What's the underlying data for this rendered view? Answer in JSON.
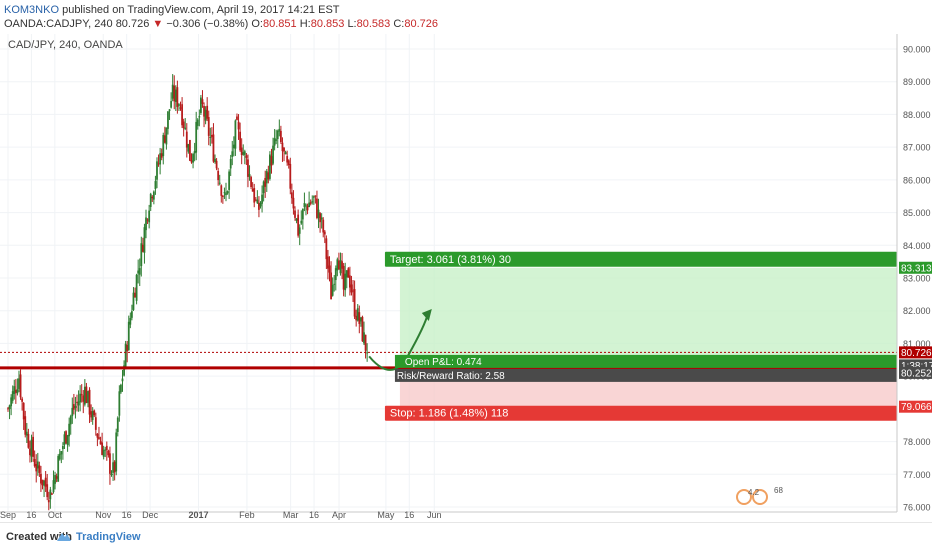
{
  "header": {
    "author": "KOM3NKO",
    "published": "published on TradingView.com, April 19, 2017 14:21 EST",
    "symbol": "OANDA:CADJPY, 240",
    "last": "80.726",
    "change": "−0.306 (−0.38%)",
    "open_label": "O:",
    "open": "80.851",
    "high_label": "H:",
    "high": "80.853",
    "low_label": "L:",
    "low": "80.583",
    "close_label": "C:",
    "close": "80.726"
  },
  "legend": {
    "title": "CAD/JPY, 240, OANDA"
  },
  "position": {
    "target_label": "Target: 3.061 (3.81%) 30",
    "target_price": "83.313",
    "open_pnl": "Open P&L: 0.474",
    "pnl_price": "1:38:17",
    "ratio": "Risk/Reward Ratio: 2.58",
    "entry_price": "80.252",
    "stop_label": "Stop: 1.186 (1.48%) 118",
    "stop_price": "79.066",
    "current_price": "80.726"
  },
  "colors": {
    "up": "#2e7d32",
    "down": "#b71c1c",
    "entry_line": "#b00000",
    "target_zone": "#c8f0c8",
    "stop_zone": "#f8caca",
    "target_label_bg": "#2b9a2b",
    "stop_label_bg": "#e53935"
  },
  "badges": {
    "indicator_a": "4.2",
    "indicator_b": "68"
  },
  "footer": {
    "created_with": "Created with",
    "brand": "TradingView"
  },
  "chart_data": {
    "type": "candlestick",
    "title": "CAD/JPY, 240, OANDA",
    "xlabel": "",
    "ylabel": "",
    "ylim": [
      76.0,
      90.0
    ],
    "x_ticks": [
      "Sep",
      "16",
      "Oct",
      "Nov",
      "16",
      "Dec",
      "2017",
      "Feb",
      "Mar",
      "16",
      "Apr",
      "May",
      "16",
      "Jun"
    ],
    "y_ticks": [
      "90.000",
      "89.000",
      "88.000",
      "87.000",
      "86.000",
      "85.000",
      "84.000",
      "83.000",
      "82.000",
      "81.000",
      "80.000",
      "79.000",
      "78.000",
      "77.000",
      "76.000"
    ],
    "close_path": [
      {
        "date": "2016-09-01",
        "close": 79.0
      },
      {
        "date": "2016-09-08",
        "close": 80.0
      },
      {
        "date": "2016-09-12",
        "close": 78.4
      },
      {
        "date": "2016-09-20",
        "close": 77.1
      },
      {
        "date": "2016-09-28",
        "close": 76.4
      },
      {
        "date": "2016-10-05",
        "close": 77.7
      },
      {
        "date": "2016-10-12",
        "close": 78.9
      },
      {
        "date": "2016-10-20",
        "close": 79.6
      },
      {
        "date": "2016-10-27",
        "close": 78.4
      },
      {
        "date": "2016-11-03",
        "close": 77.5
      },
      {
        "date": "2016-11-08",
        "close": 77.0
      },
      {
        "date": "2016-11-11",
        "close": 79.2
      },
      {
        "date": "2016-11-15",
        "close": 80.6
      },
      {
        "date": "2016-11-20",
        "close": 82.4
      },
      {
        "date": "2016-11-25",
        "close": 83.7
      },
      {
        "date": "2016-11-30",
        "close": 85.3
      },
      {
        "date": "2016-12-05",
        "close": 86.2
      },
      {
        "date": "2016-12-10",
        "close": 87.3
      },
      {
        "date": "2016-12-15",
        "close": 88.6
      },
      {
        "date": "2016-12-20",
        "close": 88.4
      },
      {
        "date": "2016-12-27",
        "close": 86.6
      },
      {
        "date": "2017-01-03",
        "close": 88.3
      },
      {
        "date": "2017-01-10",
        "close": 87.0
      },
      {
        "date": "2017-01-18",
        "close": 85.3
      },
      {
        "date": "2017-01-25",
        "close": 87.6
      },
      {
        "date": "2017-02-01",
        "close": 86.5
      },
      {
        "date": "2017-02-08",
        "close": 85.0
      },
      {
        "date": "2017-02-15",
        "close": 86.4
      },
      {
        "date": "2017-02-21",
        "close": 87.4
      },
      {
        "date": "2017-02-28",
        "close": 86.1
      },
      {
        "date": "2017-03-06",
        "close": 84.4
      },
      {
        "date": "2017-03-10",
        "close": 85.2
      },
      {
        "date": "2017-03-16",
        "close": 85.4
      },
      {
        "date": "2017-03-22",
        "close": 84.4
      },
      {
        "date": "2017-03-27",
        "close": 82.5
      },
      {
        "date": "2017-03-31",
        "close": 83.9
      },
      {
        "date": "2017-04-04",
        "close": 82.6
      },
      {
        "date": "2017-04-07",
        "close": 83.2
      },
      {
        "date": "2017-04-11",
        "close": 82.1
      },
      {
        "date": "2017-04-15",
        "close": 81.5
      },
      {
        "date": "2017-04-19",
        "close": 80.726
      }
    ],
    "entry_price": 80.252,
    "target_price": 83.313,
    "stop_price": 79.066,
    "current_price": 80.726
  }
}
